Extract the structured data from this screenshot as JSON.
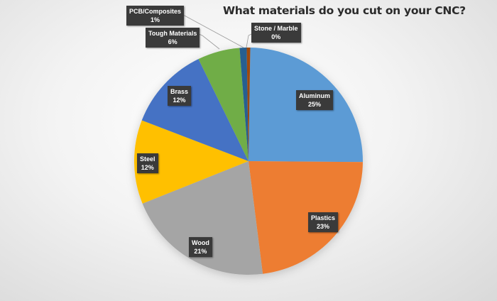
{
  "chart_data": {
    "type": "pie",
    "title": "What materials do you cut on your CNC?",
    "start_angle_deg": 0,
    "direction": "clockwise",
    "slices": [
      {
        "label": "Aluminum",
        "value": 25,
        "display": "25%",
        "color": "#5B9BD5"
      },
      {
        "label": "Plastics",
        "value": 23,
        "display": "23%",
        "color": "#ED7D31"
      },
      {
        "label": "Wood",
        "value": 21,
        "display": "21%",
        "color": "#A5A5A5"
      },
      {
        "label": "Steel",
        "value": 12,
        "display": "12%",
        "color": "#FFC000"
      },
      {
        "label": "Brass",
        "value": 12,
        "display": "12%",
        "color": "#4472C4"
      },
      {
        "label": "Tough Materials",
        "value": 6,
        "display": "6%",
        "color": "#70AD47"
      },
      {
        "label": "PCB/Composites",
        "value": 1,
        "display": "1%",
        "color": "#255E91"
      },
      {
        "label": "Stone / Marble",
        "value": 0,
        "display": "0%",
        "color": "#9E480E"
      }
    ],
    "legend": "none",
    "data_labels": "callouts (name + percentage)"
  },
  "labels": {
    "aluminum": {
      "name": "Aluminum",
      "pct": "25%"
    },
    "plastics": {
      "name": "Plastics",
      "pct": "23%"
    },
    "wood": {
      "name": "Wood",
      "pct": "21%"
    },
    "steel": {
      "name": "Steel",
      "pct": "12%"
    },
    "brass": {
      "name": "Brass",
      "pct": "12%"
    },
    "tough": {
      "name": "Tough Materials",
      "pct": "6%"
    },
    "pcb": {
      "name": "PCB/Composites",
      "pct": "1%"
    },
    "stone": {
      "name": "Stone / Marble",
      "pct": "0%"
    }
  }
}
